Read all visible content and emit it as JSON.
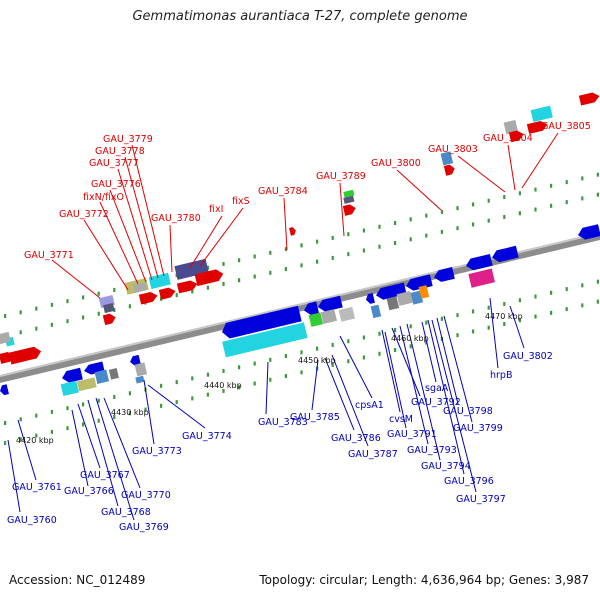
{
  "title": "Gemmatimonas aurantiaca T-27, complete genome",
  "accession_text": "Accession: NC_012489",
  "summary_text": "Topology: circular; Length: 4,636,964 bp; Genes: 3,987",
  "colors": {
    "top_label": "#dd0000",
    "bottom_label": "#0000bb",
    "backbone": "#888888"
  },
  "tick_labels": [
    "4420 kbp",
    "4430 kbp",
    "4440 kbp",
    "4450 kbp",
    "4460 kbp",
    "4470 kbp"
  ],
  "top_labels": [
    "GAU_3771",
    "GAU_3772",
    "fixN/fixO",
    "GAU_3776",
    "GAU_3777",
    "GAU_3778",
    "GAU_3779",
    "GAU_3780",
    "fixI",
    "fixS",
    "GAU_3784",
    "GAU_3789",
    "GAU_3800",
    "GAU_3803",
    "GAU_3804",
    "GAU_3805"
  ],
  "bottom_labels": [
    "GAU_3760",
    "GAU_3761",
    "GAU_3766",
    "GAU_3767",
    "GAU_3768",
    "GAU_3769",
    "GAU_3770",
    "GAU_3773",
    "GAU_3774",
    "GAU_3783",
    "GAU_3785",
    "GAU_3786",
    "GAU_3787",
    "cpsA1",
    "cvsM",
    "GAU_3791",
    "GAU_3792",
    "GAU_3793",
    "GAU_3794",
    "sgaA",
    "GAU_3796",
    "GAU_3797",
    "GAU_3798",
    "GAU_3799",
    "hrpB",
    "GAU_3802"
  ]
}
